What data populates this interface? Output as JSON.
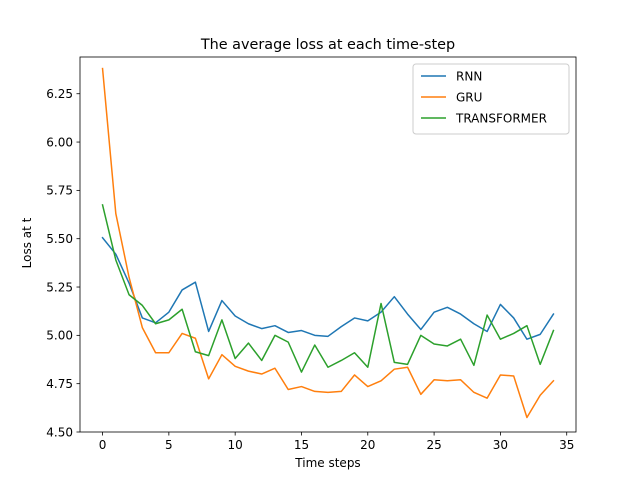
{
  "chart_data": {
    "type": "line",
    "title": "The average loss at each time-step",
    "xlabel": "Time steps",
    "ylabel": "Loss at t",
    "xlim": [
      -1.7,
      35.7
    ],
    "ylim": [
      4.5,
      6.44
    ],
    "xticks": [
      0,
      5,
      10,
      15,
      20,
      25,
      30,
      35
    ],
    "xtick_labels": [
      "0",
      "5",
      "10",
      "15",
      "20",
      "25",
      "30",
      "35"
    ],
    "yticks": [
      4.5,
      4.75,
      5.0,
      5.25,
      5.5,
      5.75,
      6.0,
      6.25
    ],
    "ytick_labels": [
      "4.50",
      "4.75",
      "5.00",
      "5.25",
      "5.50",
      "5.75",
      "6.00",
      "6.25"
    ],
    "grid": false,
    "legend_position": "top-right",
    "x": [
      0,
      1,
      2,
      3,
      4,
      5,
      6,
      7,
      8,
      9,
      10,
      11,
      12,
      13,
      14,
      15,
      16,
      17,
      18,
      19,
      20,
      21,
      22,
      23,
      24,
      25,
      26,
      27,
      28,
      29,
      30,
      31,
      32,
      33,
      34
    ],
    "series": [
      {
        "name": "RNN",
        "color": "#1f77b4",
        "values": [
          5.505,
          5.42,
          5.27,
          5.09,
          5.065,
          5.12,
          5.235,
          5.275,
          5.02,
          5.18,
          5.1,
          5.06,
          5.035,
          5.05,
          5.015,
          5.025,
          5.0,
          4.995,
          5.045,
          5.09,
          5.075,
          5.12,
          5.2,
          5.11,
          5.03,
          5.12,
          5.145,
          5.11,
          5.06,
          5.02,
          5.16,
          5.09,
          4.98,
          5.005,
          5.11
        ]
      },
      {
        "name": "GRU",
        "color": "#ff7f0e",
        "values": [
          6.38,
          5.63,
          5.3,
          5.04,
          4.91,
          4.91,
          5.01,
          4.985,
          4.775,
          4.9,
          4.84,
          4.815,
          4.8,
          4.83,
          4.72,
          4.735,
          4.71,
          4.705,
          4.71,
          4.795,
          4.735,
          4.765,
          4.825,
          4.835,
          4.695,
          4.77,
          4.765,
          4.77,
          4.705,
          4.675,
          4.795,
          4.79,
          4.575,
          4.69,
          4.765
        ]
      },
      {
        "name": "TRANSFORMER",
        "color": "#2ca02c",
        "values": [
          5.675,
          5.39,
          5.21,
          5.155,
          5.06,
          5.08,
          5.135,
          4.915,
          4.895,
          5.08,
          4.88,
          4.96,
          4.87,
          5.0,
          4.965,
          4.81,
          4.95,
          4.835,
          4.87,
          4.91,
          4.835,
          5.165,
          4.86,
          4.85,
          5.0,
          4.955,
          4.945,
          4.98,
          4.845,
          5.105,
          4.98,
          5.01,
          5.05,
          4.85,
          5.025
        ]
      }
    ]
  }
}
